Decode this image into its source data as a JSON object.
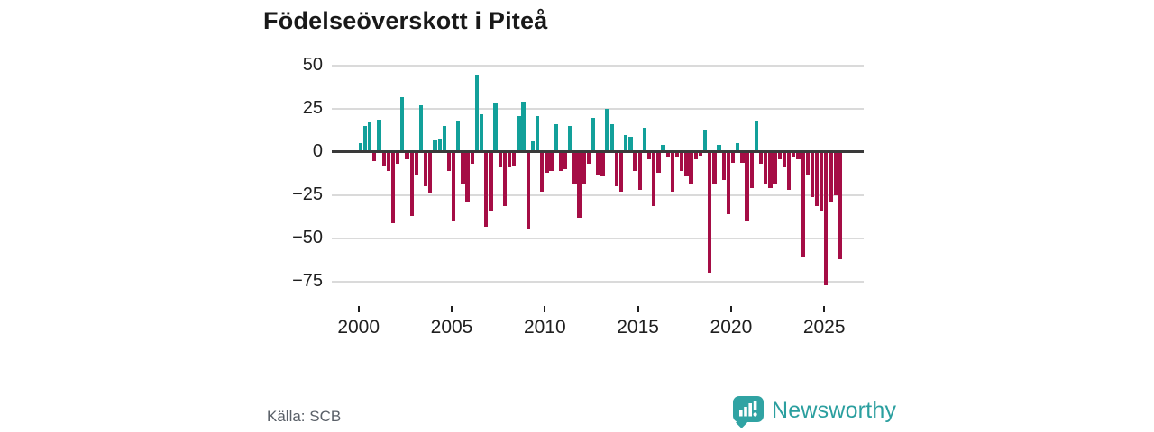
{
  "title": "Födelseöverskott i Piteå",
  "source": "Källa: SCB",
  "logo": {
    "text": "Newsworthy",
    "icon": "bar-chart-speech-bubble-icon"
  },
  "colors": {
    "positive": "#12a09a",
    "negative": "#a50d45",
    "axis": "#3a3a3a",
    "grid": "#dadada",
    "tick_label": "#1f1f1f",
    "source_text": "#5a6068",
    "logo_teal": "#30a3a3"
  },
  "chart_data": {
    "type": "bar",
    "title": "Födelseöverskott i Piteå",
    "xlabel": "",
    "ylabel": "",
    "frequency": "quarterly",
    "start_year": 2000,
    "x_tick_years": [
      2000,
      2005,
      2010,
      2015,
      2020,
      2025
    ],
    "y_ticks": [
      50,
      25,
      0,
      -25,
      -50,
      -75
    ],
    "ylim": [
      -80,
      55
    ],
    "grid": "horizontal",
    "legend": "none",
    "positive_color": "#12a09a",
    "negative_color": "#a50d45",
    "series": [
      {
        "name": "Födelseöverskott",
        "values": [
          5,
          15,
          17,
          -5,
          19,
          -8,
          -11,
          -41,
          -7,
          32,
          -4,
          -37,
          -13,
          27,
          -20,
          -24,
          7,
          8,
          15,
          -11,
          -40,
          18,
          -18,
          -29,
          -7,
          45,
          22,
          -43,
          -34,
          28,
          -9,
          -31,
          -9,
          -8,
          21,
          29,
          -45,
          6,
          21,
          -23,
          -12,
          -11,
          16,
          -11,
          -10,
          15,
          -19,
          -38,
          -18,
          -7,
          20,
          -13,
          -14,
          25,
          16,
          -20,
          -23,
          10,
          9,
          -11,
          -22,
          14,
          -4,
          -31,
          -12,
          4,
          -3,
          -23,
          -3,
          -11,
          -14,
          -18,
          -4,
          -2,
          13,
          -70,
          -18,
          4,
          -16,
          -36,
          -6,
          5,
          -6,
          -40,
          -21,
          18,
          -7,
          -19,
          -21,
          -18,
          -4,
          -9,
          -22,
          -3,
          -4,
          -61,
          -13,
          -26,
          -31,
          -34,
          -77,
          -29,
          -25,
          -62
        ]
      }
    ]
  }
}
